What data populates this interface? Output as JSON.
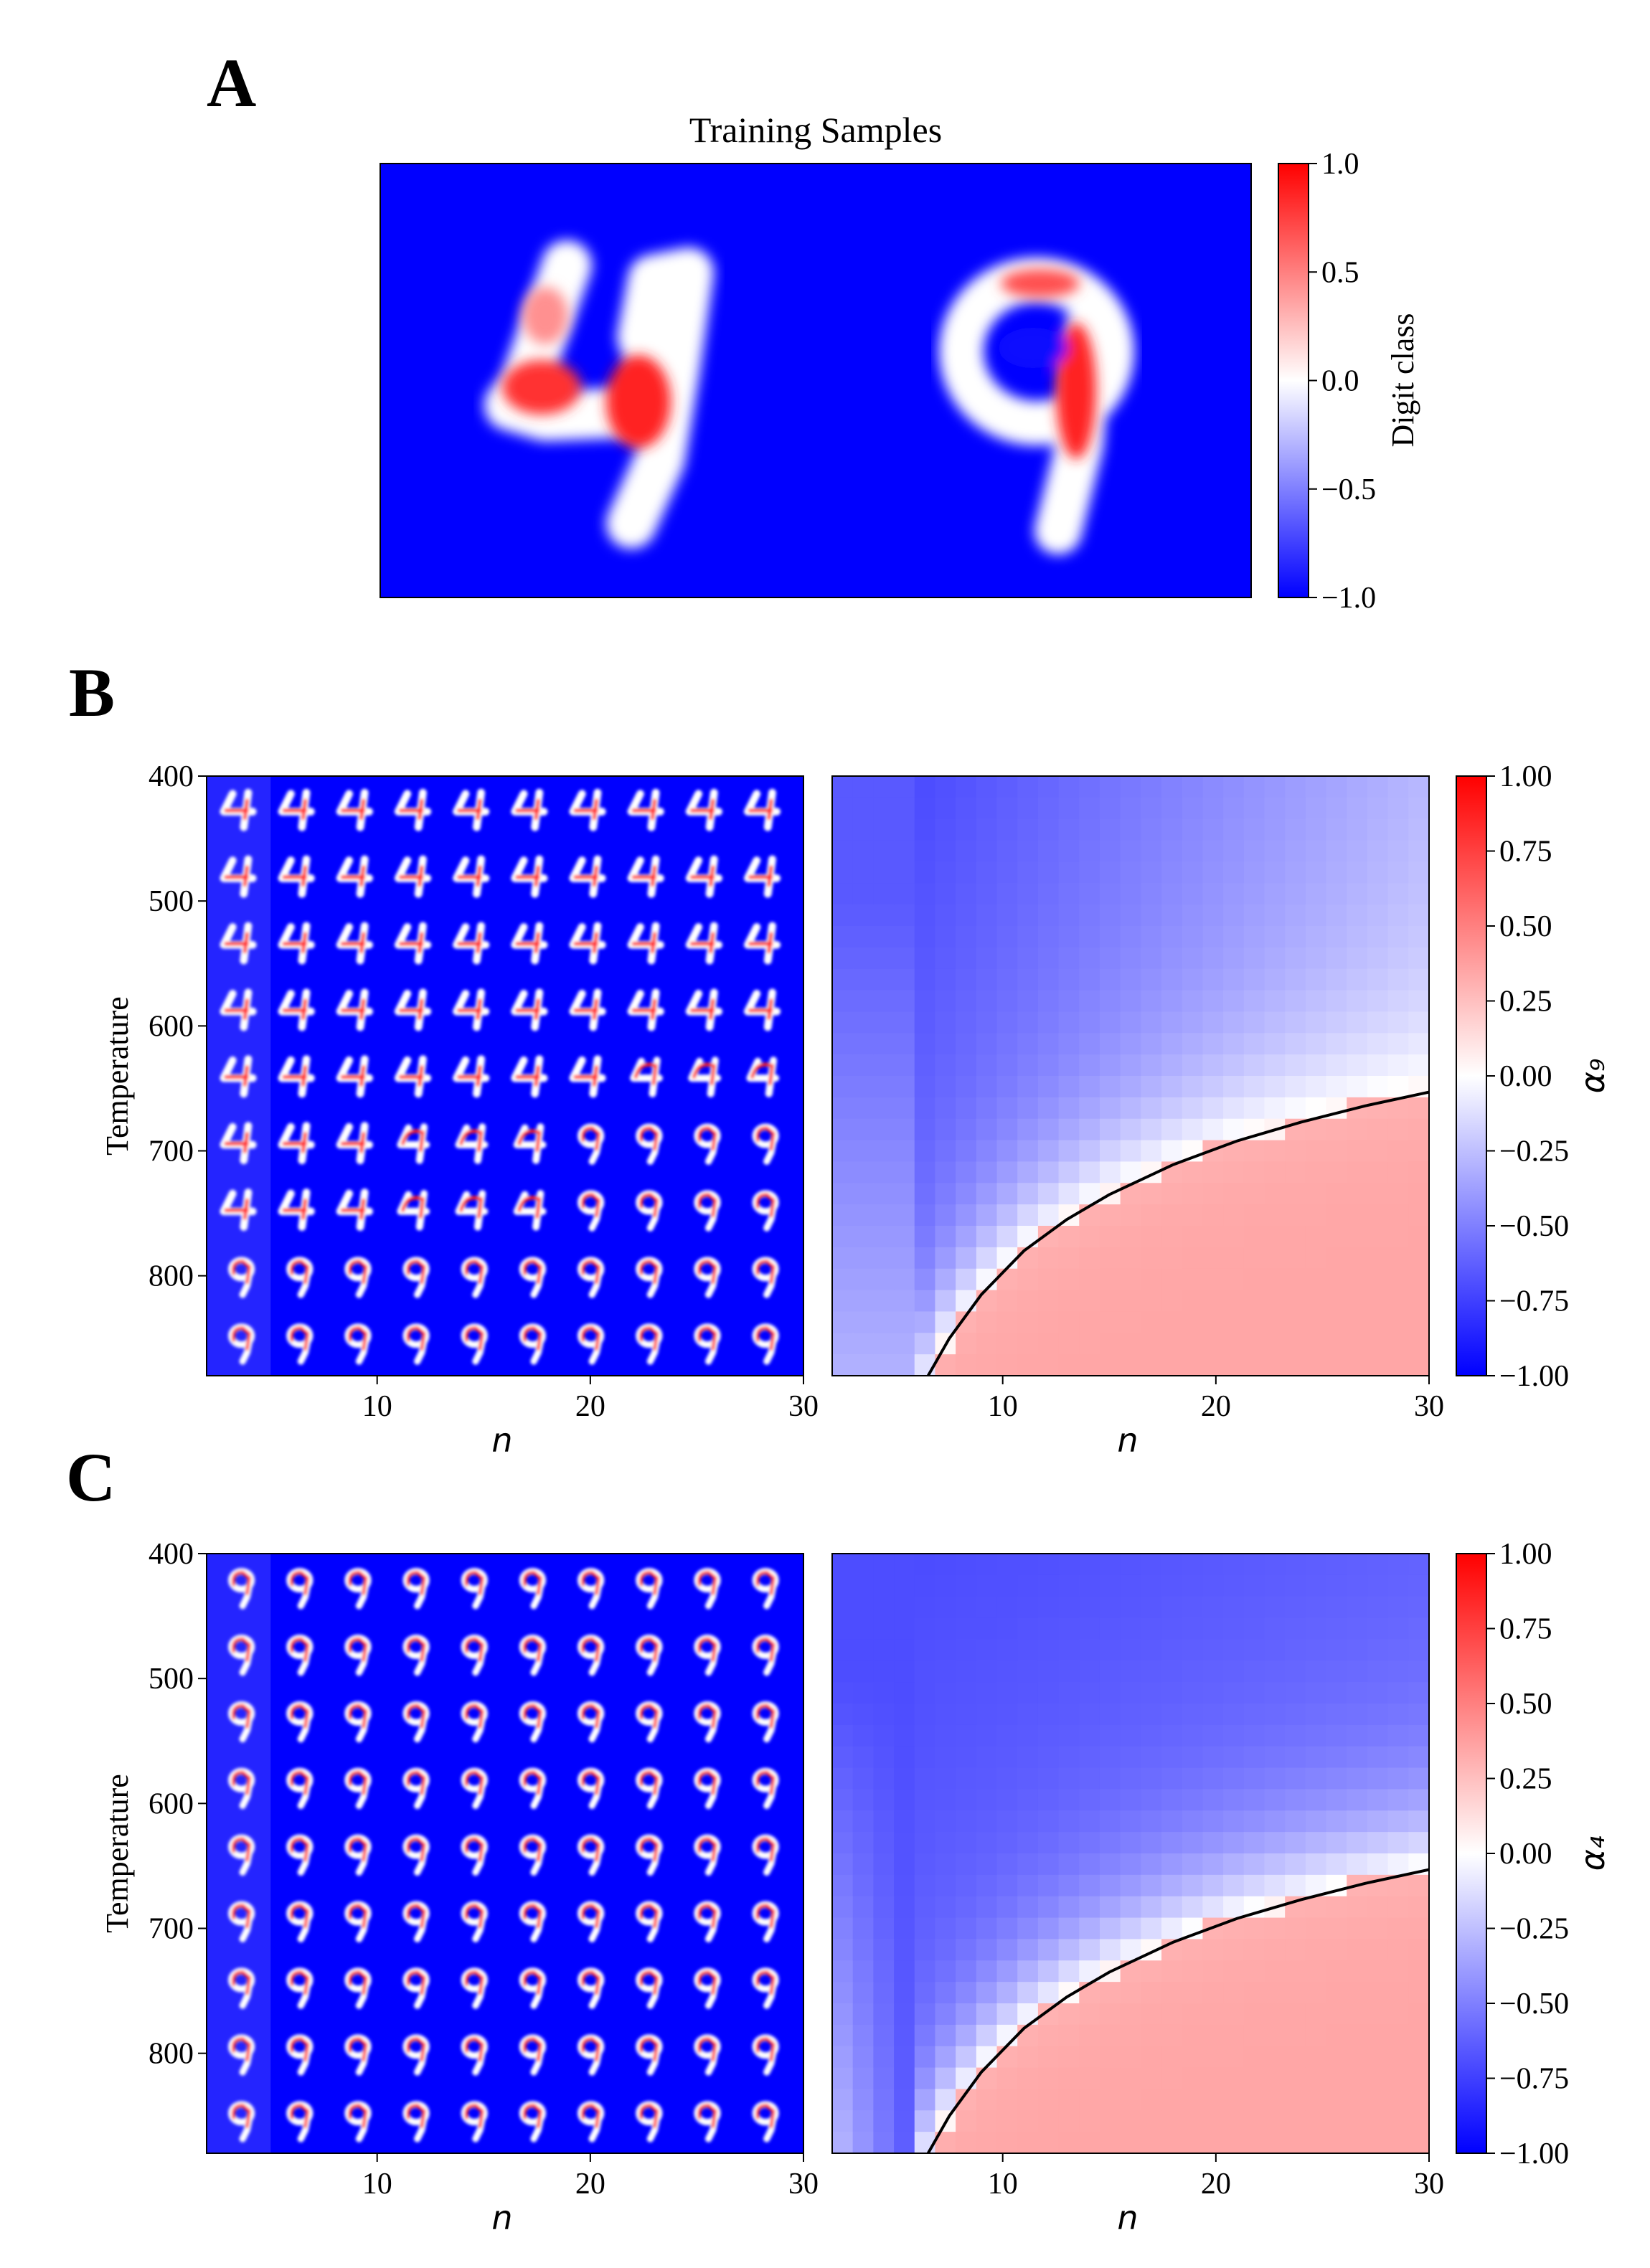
{
  "panel_labels": [
    "A",
    "B",
    "C"
  ],
  "colors": {
    "min": "#0000ff",
    "mid": "#ffffff",
    "max": "#ff0000"
  },
  "chart_data": [
    {
      "id": "A",
      "type": "heatmap",
      "title": "Training Samples",
      "colorbar_label": "Digit class",
      "colorbar_ticks": [
        "1.0",
        "0.5",
        "0.0",
        "−0.5",
        "−1.0"
      ],
      "colorbar_values": [
        1.0,
        0.5,
        0.0,
        -0.5,
        -1.0
      ],
      "vmin": -1.0,
      "vmax": 1.0,
      "digits": [
        "4",
        "9"
      ]
    },
    {
      "id": "B-left",
      "type": "heatmap",
      "ylabel": "Temperature",
      "xlabel": "n",
      "yticks": [
        "400",
        "500",
        "600",
        "700",
        "800"
      ],
      "xticks": [
        "10",
        "20",
        "30"
      ],
      "xlim": [
        2,
        30
      ],
      "ylim": [
        880,
        400
      ],
      "rows": [
        "4",
        "4",
        "4",
        "4",
        "4",
        "m",
        "m",
        "9",
        "9"
      ],
      "grid_cols": 10,
      "grid_rows": 9
    },
    {
      "id": "B-right",
      "type": "heatmap",
      "xlabel": "n",
      "xticks": [
        "10",
        "20",
        "30"
      ],
      "xlim": [
        2,
        30
      ],
      "ylim": [
        880,
        400
      ],
      "colorbar_label": "α₉",
      "colorbar_ticks": [
        "1.00",
        "0.75",
        "0.50",
        "0.25",
        "0.00",
        "−0.25",
        "−0.50",
        "−0.75",
        "−1.00"
      ],
      "colorbar_values": [
        1.0,
        0.75,
        0.5,
        0.25,
        0.0,
        -0.25,
        -0.5,
        -0.75,
        -1.0
      ],
      "vmin": -1.0,
      "vmax": 1.0,
      "boundary_curve": {
        "n": [
          6.5,
          7.5,
          9,
          11,
          13,
          15,
          18,
          21,
          24,
          27,
          30
        ],
        "T": [
          880,
          850,
          815,
          780,
          755,
          735,
          711,
          692,
          677,
          664,
          653
        ]
      }
    },
    {
      "id": "C-left",
      "type": "heatmap",
      "ylabel": "Temperature",
      "xlabel": "n",
      "yticks": [
        "400",
        "500",
        "600",
        "700",
        "800"
      ],
      "xticks": [
        "10",
        "20",
        "30"
      ],
      "xlim": [
        2,
        30
      ],
      "ylim": [
        880,
        400
      ],
      "rows": [
        "9",
        "9",
        "9",
        "9",
        "9",
        "9",
        "9",
        "9",
        "9"
      ],
      "grid_cols": 10,
      "grid_rows": 9
    },
    {
      "id": "C-right",
      "type": "heatmap",
      "xlabel": "n",
      "xticks": [
        "10",
        "20",
        "30"
      ],
      "xlim": [
        2,
        30
      ],
      "ylim": [
        880,
        400
      ],
      "colorbar_label": "α₄",
      "colorbar_ticks": [
        "1.00",
        "0.75",
        "0.50",
        "0.25",
        "0.00",
        "−0.25",
        "−0.50",
        "−0.75",
        "−1.00"
      ],
      "colorbar_values": [
        1.0,
        0.75,
        0.5,
        0.25,
        0.0,
        -0.25,
        -0.5,
        -0.75,
        -1.0
      ],
      "vmin": -1.0,
      "vmax": 1.0,
      "boundary_curve": {
        "n": [
          6.5,
          7.5,
          9,
          11,
          13,
          15,
          18,
          21,
          24,
          27,
          30
        ],
        "T": [
          880,
          850,
          815,
          780,
          755,
          735,
          711,
          692,
          677,
          664,
          653
        ]
      }
    }
  ]
}
